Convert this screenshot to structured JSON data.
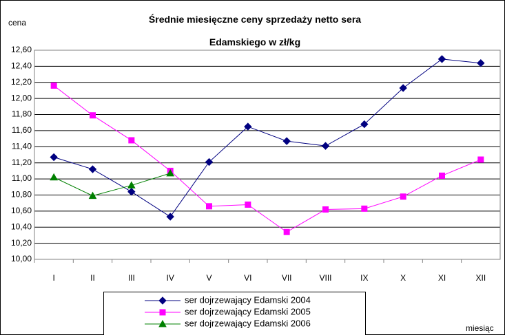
{
  "chart_data": {
    "type": "line",
    "title": "Średnie miesięczne ceny sprzedaży netto sera Edamskiego w zł/kg",
    "y_label": "cena",
    "x_label": "miesiąc",
    "categories": [
      "I",
      "II",
      "III",
      "IV",
      "V",
      "VI",
      "VII",
      "VIII",
      "IX",
      "X",
      "XI",
      "XII"
    ],
    "series": [
      {
        "name": "ser dojrzewający Edamski 2004",
        "color": "#000080",
        "marker": "diamond",
        "values": [
          11.27,
          11.12,
          10.84,
          10.53,
          11.21,
          11.65,
          11.47,
          11.41,
          11.68,
          12.13,
          12.49,
          12.44
        ]
      },
      {
        "name": "ser dojrzewający Edamski 2005",
        "color": "#ff00ff",
        "marker": "square",
        "values": [
          12.16,
          11.79,
          11.48,
          11.1,
          10.66,
          10.68,
          10.34,
          10.62,
          10.63,
          10.78,
          11.04,
          11.24
        ]
      },
      {
        "name": "ser dojrzewający Edamski 2006",
        "color": "#008000",
        "marker": "triangle",
        "values": [
          11.02,
          10.79,
          10.92,
          11.07,
          null,
          null,
          null,
          null,
          null,
          null,
          null,
          null
        ]
      }
    ],
    "ylim": [
      10.0,
      12.6
    ],
    "yticks": [
      {
        "value": 10.0,
        "label": "10,00"
      },
      {
        "value": 10.2,
        "label": "10,20"
      },
      {
        "value": 10.4,
        "label": "10,40"
      },
      {
        "value": 10.6,
        "label": "10,60"
      },
      {
        "value": 10.8,
        "label": "10,80"
      },
      {
        "value": 11.0,
        "label": "11,00"
      },
      {
        "value": 11.2,
        "label": "11,20"
      },
      {
        "value": 11.4,
        "label": "11,40"
      },
      {
        "value": 11.6,
        "label": "11,60"
      },
      {
        "value": 11.8,
        "label": "11,80"
      },
      {
        "value": 12.0,
        "label": "12,00"
      },
      {
        "value": 12.2,
        "label": "12,20"
      },
      {
        "value": 12.4,
        "label": "12,40"
      },
      {
        "value": 12.6,
        "label": "12,60"
      }
    ],
    "grid": true
  }
}
